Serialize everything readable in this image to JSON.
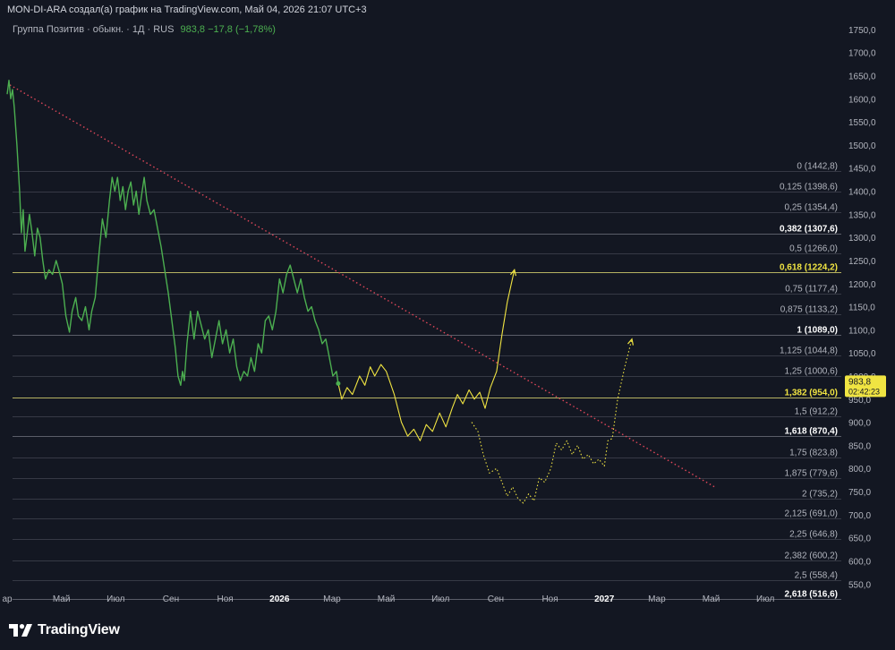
{
  "header": {
    "caption": "MON-DI-ARA создал(а) график на TradingView.com, Май 04, 2026 21:07 UTC+3"
  },
  "legend": {
    "symbol": "Группа Позитив · обыкн. · 1Д · RUS",
    "values": "983,8  −17,8 (−1,78%)"
  },
  "price_tag": {
    "price": "983,8",
    "timer": "02:42:23"
  },
  "brand": {
    "name": "TradingView"
  },
  "colors": {
    "background": "#131722",
    "price_line": "#4caf50",
    "projection": "#f0e442",
    "trendline": "#e0475a",
    "fib_line": "#787b86",
    "fib_highlight": "#c8c36a",
    "text": "#d1d4dc"
  },
  "chart_data": {
    "type": "line",
    "y_axis": {
      "range": [
        535,
        1775
      ],
      "ticks": [
        550,
        600,
        650,
        700,
        750,
        800,
        850,
        900,
        950,
        1000,
        1050,
        1100,
        1150,
        1200,
        1250,
        1300,
        1350,
        1400,
        1450,
        1500,
        1550,
        1600,
        1650,
        1700,
        1750
      ],
      "tick_labels": [
        "550,0",
        "600,0",
        "650,0",
        "700,0",
        "750,0",
        "800,0",
        "850,0",
        "900,0",
        "950,0",
        "1000,0",
        "1050,0",
        "1100,0",
        "1150,0",
        "1200,0",
        "1250,0",
        "1300,0",
        "1350,0",
        "1400,0",
        "1450,0",
        "1500,0",
        "1550,0",
        "1600,0",
        "1650,0",
        "1700,0",
        "1750,0"
      ]
    },
    "x_axis": {
      "range": [
        "2025-03-01",
        "2027-08-01"
      ],
      "ticks": [
        {
          "date": "2025-03-01",
          "label": "ар",
          "bold": false
        },
        {
          "date": "2025-05-01",
          "label": "Май",
          "bold": false
        },
        {
          "date": "2025-07-01",
          "label": "Июл",
          "bold": false
        },
        {
          "date": "2025-09-01",
          "label": "Сен",
          "bold": false
        },
        {
          "date": "2025-11-01",
          "label": "Ноя",
          "bold": false
        },
        {
          "date": "2026-01-01",
          "label": "2026",
          "bold": true
        },
        {
          "date": "2026-03-01",
          "label": "Мар",
          "bold": false
        },
        {
          "date": "2026-05-01",
          "label": "Май",
          "bold": false
        },
        {
          "date": "2026-07-01",
          "label": "Июл",
          "bold": false
        },
        {
          "date": "2026-09-01",
          "label": "Сен",
          "bold": false
        },
        {
          "date": "2026-11-01",
          "label": "Ноя",
          "bold": false
        },
        {
          "date": "2027-01-01",
          "label": "2027",
          "bold": true
        },
        {
          "date": "2027-03-01",
          "label": "Мар",
          "bold": false
        },
        {
          "date": "2027-05-01",
          "label": "Май",
          "bold": false
        },
        {
          "date": "2027-07-01",
          "label": "Июл",
          "bold": false
        }
      ]
    },
    "fib_levels": [
      {
        "ratio": "0",
        "price": 1442.8,
        "label": "0 (1442,8)",
        "style": "normal"
      },
      {
        "ratio": "0,125",
        "price": 1398.6,
        "label": "0,125 (1398,6)",
        "style": "normal"
      },
      {
        "ratio": "0,25",
        "price": 1354.4,
        "label": "0,25 (1354,4)",
        "style": "normal"
      },
      {
        "ratio": "0,382",
        "price": 1307.6,
        "label": "0,382 (1307,6)",
        "style": "bold"
      },
      {
        "ratio": "0,5",
        "price": 1266.0,
        "label": "0,5 (1266,0)",
        "style": "normal"
      },
      {
        "ratio": "0,618",
        "price": 1224.2,
        "label": "0,618 (1224,2)",
        "style": "highlight"
      },
      {
        "ratio": "0,75",
        "price": 1177.4,
        "label": "0,75 (1177,4)",
        "style": "normal"
      },
      {
        "ratio": "0,875",
        "price": 1133.2,
        "label": "0,875 (1133,2)",
        "style": "normal"
      },
      {
        "ratio": "1",
        "price": 1089.0,
        "label": "1 (1089,0)",
        "style": "bold"
      },
      {
        "ratio": "1,125",
        "price": 1044.8,
        "label": "1,125 (1044,8)",
        "style": "normal"
      },
      {
        "ratio": "1,25",
        "price": 1000.6,
        "label": "1,25 (1000,6)",
        "style": "normal"
      },
      {
        "ratio": "1,382",
        "price": 954.0,
        "label": "1,382 (954,0)",
        "style": "highlight"
      },
      {
        "ratio": "1,5",
        "price": 912.2,
        "label": "1,5 (912,2)",
        "style": "normal"
      },
      {
        "ratio": "1,618",
        "price": 870.4,
        "label": "1,618 (870,4)",
        "style": "bold"
      },
      {
        "ratio": "1,75",
        "price": 823.8,
        "label": "1,75 (823,8)",
        "style": "normal"
      },
      {
        "ratio": "1,875",
        "price": 779.6,
        "label": "1,875 (779,6)",
        "style": "normal"
      },
      {
        "ratio": "2",
        "price": 735.2,
        "label": "2 (735,2)",
        "style": "normal"
      },
      {
        "ratio": "2,125",
        "price": 691.0,
        "label": "2,125 (691,0)",
        "style": "normal"
      },
      {
        "ratio": "2,25",
        "price": 646.8,
        "label": "2,25 (646,8)",
        "style": "normal"
      },
      {
        "ratio": "2,382",
        "price": 600.2,
        "label": "2,382 (600,2)",
        "style": "normal"
      },
      {
        "ratio": "2,5",
        "price": 558.4,
        "label": "2,5 (558,4)",
        "style": "normal"
      },
      {
        "ratio": "2,618",
        "price": 516.6,
        "label": "2,618 (516,6)",
        "style": "bold"
      }
    ],
    "trendline": {
      "start": [
        "2025-03-04",
        1630
      ],
      "end": [
        "2027-05-05",
        760
      ],
      "style": "dotted"
    },
    "series": [
      {
        "style": "solid",
        "values": [
          [
            "2025-03-01",
            1610
          ],
          [
            "2025-03-03",
            1640
          ],
          [
            "2025-03-05",
            1600
          ],
          [
            "2025-03-07",
            1620
          ],
          [
            "2025-03-09",
            1580
          ],
          [
            "2025-03-12",
            1500
          ],
          [
            "2025-03-15",
            1400
          ],
          [
            "2025-03-17",
            1310
          ],
          [
            "2025-03-19",
            1360
          ],
          [
            "2025-03-21",
            1270
          ],
          [
            "2025-03-23",
            1300
          ],
          [
            "2025-03-26",
            1350
          ],
          [
            "2025-03-29",
            1310
          ],
          [
            "2025-04-01",
            1260
          ],
          [
            "2025-04-04",
            1320
          ],
          [
            "2025-04-07",
            1300
          ],
          [
            "2025-04-10",
            1250
          ],
          [
            "2025-04-13",
            1210
          ],
          [
            "2025-04-17",
            1230
          ],
          [
            "2025-04-21",
            1220
          ],
          [
            "2025-04-25",
            1250
          ],
          [
            "2025-04-28",
            1230
          ],
          [
            "2025-05-02",
            1200
          ],
          [
            "2025-05-06",
            1130
          ],
          [
            "2025-05-10",
            1095
          ],
          [
            "2025-05-13",
            1140
          ],
          [
            "2025-05-17",
            1170
          ],
          [
            "2025-05-20",
            1130
          ],
          [
            "2025-05-24",
            1120
          ],
          [
            "2025-05-28",
            1150
          ],
          [
            "2025-06-01",
            1100
          ],
          [
            "2025-06-04",
            1140
          ],
          [
            "2025-06-08",
            1170
          ],
          [
            "2025-06-12",
            1260
          ],
          [
            "2025-06-16",
            1340
          ],
          [
            "2025-06-20",
            1300
          ],
          [
            "2025-06-24",
            1380
          ],
          [
            "2025-06-27",
            1430
          ],
          [
            "2025-06-30",
            1400
          ],
          [
            "2025-07-03",
            1430
          ],
          [
            "2025-07-06",
            1380
          ],
          [
            "2025-07-09",
            1410
          ],
          [
            "2025-07-12",
            1360
          ],
          [
            "2025-07-15",
            1400
          ],
          [
            "2025-07-18",
            1420
          ],
          [
            "2025-07-21",
            1370
          ],
          [
            "2025-07-24",
            1400
          ],
          [
            "2025-07-27",
            1350
          ],
          [
            "2025-07-30",
            1390
          ],
          [
            "2025-08-02",
            1430
          ],
          [
            "2025-08-05",
            1380
          ],
          [
            "2025-08-09",
            1350
          ],
          [
            "2025-08-13",
            1360
          ],
          [
            "2025-08-17",
            1320
          ],
          [
            "2025-08-21",
            1280
          ],
          [
            "2025-08-25",
            1230
          ],
          [
            "2025-08-29",
            1180
          ],
          [
            "2025-09-02",
            1120
          ],
          [
            "2025-09-06",
            1060
          ],
          [
            "2025-09-09",
            1000
          ],
          [
            "2025-09-12",
            980
          ],
          [
            "2025-09-14",
            1010
          ],
          [
            "2025-09-16",
            990
          ],
          [
            "2025-09-19",
            1070
          ],
          [
            "2025-09-23",
            1140
          ],
          [
            "2025-09-27",
            1080
          ],
          [
            "2025-10-01",
            1140
          ],
          [
            "2025-10-05",
            1110
          ],
          [
            "2025-10-09",
            1080
          ],
          [
            "2025-10-13",
            1100
          ],
          [
            "2025-10-17",
            1040
          ],
          [
            "2025-10-21",
            1080
          ],
          [
            "2025-10-25",
            1120
          ],
          [
            "2025-10-29",
            1070
          ],
          [
            "2025-11-02",
            1100
          ],
          [
            "2025-11-06",
            1050
          ],
          [
            "2025-11-10",
            1080
          ],
          [
            "2025-11-14",
            1020
          ],
          [
            "2025-11-18",
            990
          ],
          [
            "2025-11-22",
            1010
          ],
          [
            "2025-11-26",
            1000
          ],
          [
            "2025-11-30",
            1040
          ],
          [
            "2025-12-04",
            1010
          ],
          [
            "2025-12-08",
            1070
          ],
          [
            "2025-12-12",
            1050
          ],
          [
            "2025-12-16",
            1120
          ],
          [
            "2025-12-20",
            1130
          ],
          [
            "2025-12-24",
            1100
          ],
          [
            "2025-12-28",
            1140
          ],
          [
            "2026-01-01",
            1210
          ],
          [
            "2026-01-05",
            1180
          ],
          [
            "2026-01-09",
            1220
          ],
          [
            "2026-01-13",
            1240
          ],
          [
            "2026-01-17",
            1210
          ],
          [
            "2026-01-21",
            1180
          ],
          [
            "2026-01-25",
            1210
          ],
          [
            "2026-01-29",
            1170
          ],
          [
            "2026-02-02",
            1140
          ],
          [
            "2026-02-06",
            1150
          ],
          [
            "2026-02-10",
            1120
          ],
          [
            "2026-02-14",
            1100
          ],
          [
            "2026-02-18",
            1070
          ],
          [
            "2026-02-22",
            1080
          ],
          [
            "2026-02-26",
            1040
          ],
          [
            "2026-03-02",
            1000
          ],
          [
            "2026-03-06",
            1010
          ],
          [
            "2026-03-08",
            983.8
          ]
        ]
      },
      {
        "style": "solid",
        "values": [
          [
            "2026-03-08",
            983.8
          ],
          [
            "2026-03-12",
            950
          ],
          [
            "2026-03-18",
            975
          ],
          [
            "2026-03-24",
            960
          ],
          [
            "2026-04-01",
            1000
          ],
          [
            "2026-04-07",
            980
          ],
          [
            "2026-04-13",
            1020
          ],
          [
            "2026-04-18",
            1000
          ],
          [
            "2026-04-25",
            1025
          ],
          [
            "2026-05-01",
            1010
          ],
          [
            "2026-05-10",
            960
          ],
          [
            "2026-05-18",
            900
          ],
          [
            "2026-05-25",
            870
          ],
          [
            "2026-06-01",
            885
          ],
          [
            "2026-06-08",
            860
          ],
          [
            "2026-06-15",
            895
          ],
          [
            "2026-06-22",
            880
          ],
          [
            "2026-06-30",
            920
          ],
          [
            "2026-07-07",
            890
          ],
          [
            "2026-07-14",
            930
          ],
          [
            "2026-07-20",
            960
          ],
          [
            "2026-07-26",
            940
          ],
          [
            "2026-08-02",
            970
          ],
          [
            "2026-08-08",
            950
          ],
          [
            "2026-08-14",
            965
          ],
          [
            "2026-08-20",
            930
          ],
          [
            "2026-08-26",
            975
          ],
          [
            "2026-09-02",
            1010
          ],
          [
            "2026-09-08",
            1090
          ],
          [
            "2026-09-14",
            1160
          ],
          [
            "2026-09-22",
            1230
          ]
        ]
      },
      {
        "style": "dotted",
        "values": [
          [
            "2026-08-05",
            900
          ],
          [
            "2026-08-12",
            880
          ],
          [
            "2026-08-18",
            830
          ],
          [
            "2026-08-25",
            790
          ],
          [
            "2026-09-02",
            800
          ],
          [
            "2026-09-08",
            770
          ],
          [
            "2026-09-14",
            740
          ],
          [
            "2026-09-20",
            760
          ],
          [
            "2026-09-26",
            735
          ],
          [
            "2026-10-02",
            725
          ],
          [
            "2026-10-08",
            745
          ],
          [
            "2026-10-14",
            730
          ],
          [
            "2026-10-20",
            780
          ],
          [
            "2026-10-26",
            770
          ],
          [
            "2026-11-02",
            800
          ],
          [
            "2026-11-08",
            855
          ],
          [
            "2026-11-14",
            840
          ],
          [
            "2026-11-20",
            860
          ],
          [
            "2026-11-26",
            830
          ],
          [
            "2026-12-02",
            850
          ],
          [
            "2026-12-08",
            820
          ],
          [
            "2026-12-14",
            830
          ],
          [
            "2026-12-20",
            810
          ],
          [
            "2026-12-26",
            820
          ],
          [
            "2027-01-01",
            805
          ],
          [
            "2027-01-05",
            860
          ],
          [
            "2027-01-10",
            865
          ],
          [
            "2027-01-16",
            950
          ],
          [
            "2027-01-24",
            1020
          ],
          [
            "2027-02-01",
            1080
          ]
        ]
      }
    ]
  }
}
